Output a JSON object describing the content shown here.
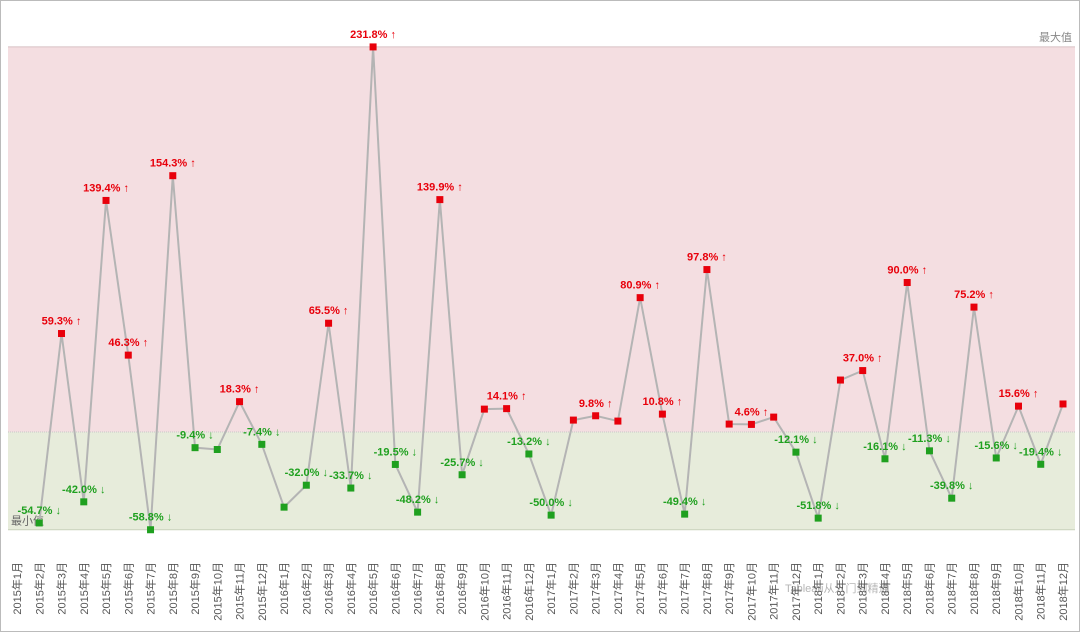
{
  "chart_data": {
    "type": "line",
    "max_label": "最大值",
    "min_label": "最小值",
    "watermark": "Tableau从入门到精通",
    "categories": [
      "2015年1月",
      "2015年2月",
      "2015年3月",
      "2015年4月",
      "2015年5月",
      "2015年6月",
      "2015年7月",
      "2015年8月",
      "2015年9月",
      "2015年10月",
      "2015年11月",
      "2015年12月",
      "2016年1月",
      "2016年2月",
      "2016年3月",
      "2016年4月",
      "2016年5月",
      "2016年6月",
      "2016年7月",
      "2016年8月",
      "2016年9月",
      "2016年10月",
      "2016年11月",
      "2016年12月",
      "2017年1月",
      "2017年2月",
      "2017年3月",
      "2017年4月",
      "2017年5月",
      "2017年6月",
      "2017年7月",
      "2017年8月",
      "2017年9月",
      "2017年10月",
      "2017年11月",
      "2017年12月",
      "2018年1月",
      "2018年2月",
      "2018年3月",
      "2018年4月",
      "2018年5月",
      "2018年6月",
      "2018年7月",
      "2018年8月",
      "2018年9月",
      "2018年10月",
      "2018年11月",
      "2018年12月"
    ],
    "values": [
      null,
      -54.7,
      59.3,
      -42.0,
      139.4,
      46.3,
      -58.8,
      154.3,
      -9.4,
      -10.5,
      18.3,
      -7.4,
      -45.2,
      -32.0,
      65.5,
      -33.7,
      231.8,
      -19.5,
      -48.2,
      139.9,
      -25.7,
      13.8,
      14.1,
      -13.2,
      -50.0,
      7.2,
      9.8,
      6.6,
      80.9,
      10.8,
      -49.4,
      97.8,
      4.8,
      4.6,
      9.0,
      -12.1,
      -51.8,
      31.3,
      37.0,
      -16.1,
      90.0,
      -11.3,
      -39.8,
      75.2,
      -15.6,
      15.6,
      -19.4,
      16.9
    ],
    "value_labels": [
      null,
      "-54.7% ↓",
      "59.3% ↑",
      "-42.0% ↓",
      "139.4% ↑",
      "46.3% ↑",
      "-58.8% ↓",
      "154.3% ↑",
      "-9.4% ↓",
      null,
      "18.3% ↑",
      "-7.4% ↓",
      null,
      "-32.0% ↓",
      "65.5% ↑",
      "-33.7% ↓",
      "231.8% ↑",
      "-19.5% ↓",
      "-48.2% ↓",
      "139.9% ↑",
      "-25.7% ↓",
      null,
      "14.1% ↑",
      "-13.2% ↓",
      "-50.0% ↓",
      null,
      "9.8% ↑",
      null,
      "80.9% ↑",
      "10.8% ↑",
      "-49.4% ↓",
      "97.8% ↑",
      null,
      "4.6% ↑",
      null,
      "-12.1% ↓",
      "-51.8% ↓",
      null,
      "37.0% ↑",
      "-16.1% ↓",
      "90.0% ↑",
      "-11.3% ↓",
      "-39.8% ↓",
      "75.2% ↑",
      "-15.6% ↓",
      "15.6% ↑",
      "-19.4% ↓",
      null
    ],
    "line_color": "#b4b4b4",
    "up_color": "#e8000b",
    "down_color": "#1fa01f",
    "up_band_color": "#f4dee1",
    "down_band_color": "#e7ecdb",
    "ylim": [
      -74,
      248
    ]
  }
}
